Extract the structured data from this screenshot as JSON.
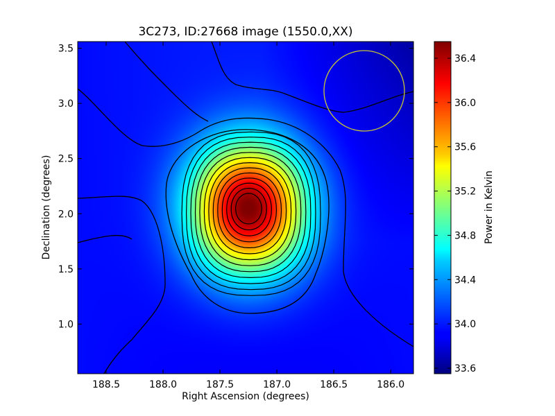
{
  "chart_data": {
    "type": "heatmap",
    "title": "3C273, ID:27668 image (1550.0,XX)",
    "xlabel": "Right Ascension (degrees)",
    "ylabel": "Declination (degrees)",
    "xlim": [
      188.75,
      185.8
    ],
    "ylim": [
      0.55,
      3.56
    ],
    "x_ticks": [
      188.5,
      188.0,
      187.5,
      187.0,
      186.5,
      186.0
    ],
    "x_tick_labels": [
      "188.5",
      "188.0",
      "187.5",
      "187.0",
      "186.5",
      "186.0"
    ],
    "y_ticks": [
      1.0,
      1.5,
      2.0,
      2.5,
      3.0,
      3.5
    ],
    "y_tick_labels": [
      "1.0",
      "1.5",
      "2.0",
      "2.5",
      "3.0",
      "3.5"
    ],
    "colormap": "jet",
    "colorbar": {
      "label": "Power in Kelvin",
      "range": [
        33.55,
        36.55
      ],
      "ticks": [
        33.6,
        34.0,
        34.4,
        34.8,
        35.2,
        35.6,
        36.0,
        36.4
      ],
      "tick_labels": [
        "33.6",
        "34.0",
        "34.4",
        "34.8",
        "35.2",
        "35.6",
        "36.0",
        "36.4"
      ]
    },
    "peak": {
      "ra": 187.25,
      "dec": 2.05,
      "value": 36.55
    },
    "background_value": 33.95,
    "contours": "black",
    "beam_circle": {
      "ra": 186.22,
      "dec": 3.11,
      "radius_deg": 0.37,
      "color": "#c8c832"
    }
  }
}
